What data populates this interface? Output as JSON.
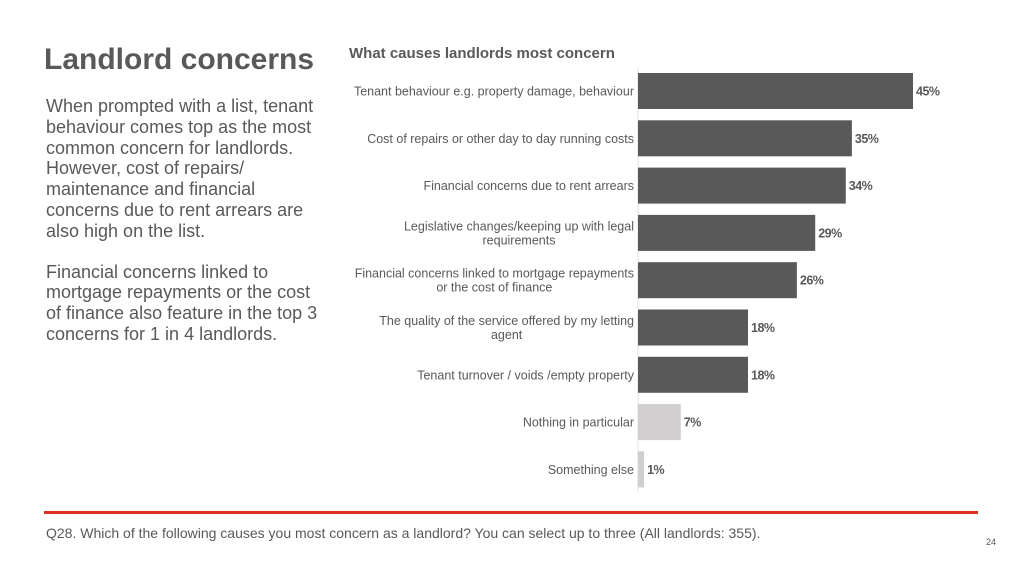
{
  "slide": {
    "title": "Landlord concerns",
    "paragraphs": [
      "When prompted with a list, tenant behaviour comes top as the most common concern for landlords.\nHowever, cost of repairs/ maintenance and financial concerns due to rent arrears are also high on the list.",
      "Financial concerns linked to mortgage repayments or the cost of finance also feature in the top 3 concerns for 1 in 4 landlords."
    ],
    "footnote": "Q28. Which of the following causes you most concern as a landlord? You can select up to three (All landlords: 355).",
    "page_number": "24"
  },
  "colors": {
    "bar_primary": "#595959",
    "bar_secondary": "#d0cecf",
    "accent_line": "#d9331f",
    "text": "#595959"
  },
  "chart_data": {
    "type": "bar",
    "orientation": "horizontal",
    "title": "What causes landlords most concern",
    "xlabel": "",
    "ylabel": "",
    "xlim": [
      0,
      50
    ],
    "grid": false,
    "categories": [
      "Tenant behaviour e.g. property damage, behaviour",
      "Cost of repairs or other day to day running costs",
      "Financial concerns  due to rent arrears",
      "Legislative changes/keeping up with legal requirements",
      "Financial concerns linked to mortgage repayments or the cost of finance",
      "The quality of the service offered by my letting agent",
      "Tenant turnover / voids /empty property",
      "Nothing in particular",
      "Something else"
    ],
    "category_lines": [
      [
        "Tenant behaviour e.g. property damage, behaviour"
      ],
      [
        "Cost of repairs or other day to day running costs"
      ],
      [
        "Financial concerns  due to rent arrears"
      ],
      [
        "Legislative changes/keeping up with legal",
        "requirements"
      ],
      [
        "Financial concerns linked to mortgage repayments",
        "or the cost of finance"
      ],
      [
        "The quality of the service offered by my letting",
        "agent"
      ],
      [
        "Tenant turnover / voids /empty property"
      ],
      [
        "Nothing in particular"
      ],
      [
        "Something else"
      ]
    ],
    "values": [
      45,
      35,
      34,
      29,
      26,
      18,
      18,
      7,
      1
    ],
    "value_labels": [
      "45%",
      "35%",
      "34%",
      "29%",
      "26%",
      "18%",
      "18%",
      "7%",
      "1%"
    ],
    "bar_shade": [
      "primary",
      "primary",
      "primary",
      "primary",
      "primary",
      "primary",
      "primary",
      "secondary",
      "secondary"
    ]
  }
}
